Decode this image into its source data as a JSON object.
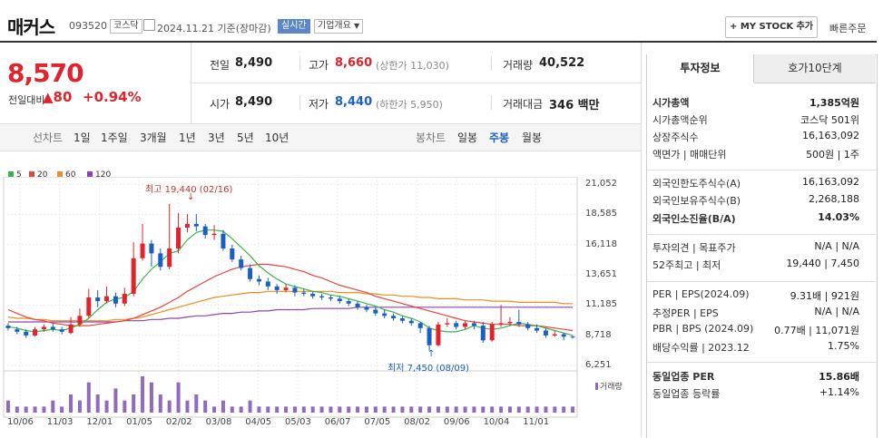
{
  "header": {
    "name": "매커스",
    "code": "093520",
    "market": "코스닥",
    "date": "2024.11.21",
    "date_note": "기준(장마감)",
    "realtime": "실시간",
    "company_info": "기업개요",
    "mystock_btn": "+ MY STOCK 추가",
    "quick_order": "빠른주문"
  },
  "price": {
    "current": "8,570",
    "change_label": "전일대비",
    "change_arrow": "▲",
    "change_value": "80",
    "change_pct": "+0.94%"
  },
  "stats": {
    "prev_label": "전일",
    "prev_value": "8,490",
    "high_label": "고가",
    "high_value": "8,660",
    "upper_label": "(상한가 11,030)",
    "volume_label": "거래량",
    "volume_value": "40,522",
    "open_label": "시가",
    "open_value": "8,490",
    "low_label": "저가",
    "low_value": "8,440",
    "lower_label": "(하한가 5,950)",
    "amount_label": "거래대금",
    "amount_value": "346 백만"
  },
  "tabs": {
    "line_label": "선차트",
    "periods": [
      "1일",
      "1주일",
      "3개월",
      "1년",
      "3년",
      "5년",
      "10년"
    ],
    "candle_label": "봉차트",
    "candles": [
      "일봉",
      "주봉",
      "월봉"
    ],
    "active_candle": "주봉"
  },
  "legend": {
    "ma": [
      {
        "label": "5",
        "color": "#3cb44b"
      },
      {
        "label": "20",
        "color": "#e6453c"
      },
      {
        "label": "60",
        "color": "#f08c1e"
      },
      {
        "label": "120",
        "color": "#8e44ad"
      }
    ],
    "volume_label": "거래량"
  },
  "annotations": {
    "high": "최고 19,440 (02/16)",
    "low": "최저 7,450 (08/09)"
  },
  "chart_data": {
    "type": "candlestick",
    "y_ticks": [
      "21,052",
      "18,585",
      "16,118",
      "13,651",
      "11,185",
      "8,718",
      "6,251"
    ],
    "x_ticks": [
      "10/06",
      "11/03",
      "12/01",
      "01/05",
      "02/02",
      "03/08",
      "04/05",
      "05/03",
      "06/07",
      "07/05",
      "08/02",
      "09/06",
      "10/04",
      "11/01"
    ],
    "ylim": [
      6251,
      21052
    ],
    "candles": [
      [
        9500,
        9300,
        9700,
        9100
      ],
      [
        9200,
        9000,
        9400,
        8800
      ],
      [
        9000,
        8700,
        9200,
        8500
      ],
      [
        8700,
        9200,
        9400,
        8600
      ],
      [
        9200,
        9400,
        9600,
        9000
      ],
      [
        9400,
        9200,
        9700,
        9000
      ],
      [
        9200,
        9000,
        9400,
        8800
      ],
      [
        8900,
        9600,
        10200,
        8800
      ],
      [
        9600,
        10300,
        10900,
        9400
      ],
      [
        10300,
        11800,
        12500,
        10100
      ],
      [
        11800,
        11500,
        12400,
        11000
      ],
      [
        11500,
        11900,
        12700,
        11300
      ],
      [
        11900,
        11300,
        12200,
        11000
      ],
      [
        11300,
        12100,
        12600,
        11100
      ],
      [
        12100,
        15000,
        16300,
        11900
      ],
      [
        15000,
        16200,
        17800,
        14800
      ],
      [
        16200,
        15400,
        16500,
        14300
      ],
      [
        15400,
        14300,
        15800,
        14000
      ],
      [
        14300,
        15800,
        19440,
        14100
      ],
      [
        15800,
        17500,
        18700,
        15400
      ],
      [
        17500,
        17800,
        18600,
        17100
      ],
      [
        17800,
        17600,
        18600,
        17200
      ],
      [
        17600,
        16900,
        17800,
        16600
      ],
      [
        16900,
        17000,
        17700,
        16500
      ],
      [
        17000,
        15800,
        17300,
        15600
      ],
      [
        15800,
        14900,
        16100,
        14700
      ],
      [
        14900,
        14200,
        15200,
        14000
      ],
      [
        14200,
        13300,
        14500,
        13100
      ],
      [
        13300,
        13100,
        13600,
        12800
      ],
      [
        13100,
        12700,
        13400,
        12400
      ],
      [
        12700,
        12400,
        12900,
        12100
      ],
      [
        12400,
        12600,
        12900,
        12200
      ],
      [
        12600,
        12200,
        12800,
        11900
      ],
      [
        12200,
        12100,
        12500,
        11900
      ],
      [
        12100,
        11900,
        12300,
        11700
      ],
      [
        11900,
        11800,
        12100,
        11600
      ],
      [
        11800,
        11700,
        12000,
        11500
      ],
      [
        11700,
        11500,
        11900,
        11300
      ],
      [
        11500,
        11300,
        11700,
        11100
      ],
      [
        11300,
        11000,
        11500,
        10800
      ],
      [
        11000,
        10800,
        11200,
        10600
      ],
      [
        10800,
        10500,
        11000,
        10300
      ],
      [
        10500,
        10300,
        10800,
        10100
      ],
      [
        10300,
        10100,
        10500,
        9900
      ],
      [
        10100,
        9900,
        10300,
        9700
      ],
      [
        9900,
        9700,
        10100,
        9500
      ],
      [
        9700,
        9300,
        9800,
        8900
      ],
      [
        9300,
        7900,
        9500,
        7450
      ],
      [
        7900,
        9600,
        9800,
        7800
      ],
      [
        9600,
        9700,
        10100,
        9400
      ],
      [
        9700,
        9400,
        9900,
        9200
      ],
      [
        9400,
        9700,
        9900,
        9200
      ],
      [
        9700,
        9500,
        9900,
        9200
      ],
      [
        9500,
        8300,
        9800,
        8100
      ],
      [
        8300,
        9600,
        9800,
        8200
      ],
      [
        9600,
        9700,
        11200,
        9400
      ],
      [
        9700,
        9800,
        10200,
        9500
      ],
      [
        9800,
        9600,
        10800,
        9400
      ],
      [
        9600,
        9300,
        9800,
        9100
      ],
      [
        9300,
        9100,
        9600,
        8900
      ],
      [
        9100,
        8700,
        9300,
        8500
      ],
      [
        8700,
        8800,
        9100,
        8600
      ],
      [
        8800,
        8600,
        8900,
        8300
      ],
      [
        8600,
        8570,
        8700,
        8440
      ]
    ],
    "ma5": [
      9400,
      9300,
      9100,
      9000,
      9100,
      9200,
      9100,
      9300,
      9600,
      10100,
      10800,
      11400,
      11700,
      11800,
      12300,
      13300,
      14100,
      14700,
      15400,
      15600,
      16500,
      17100,
      17300,
      17300,
      17200,
      16600,
      15900,
      15200,
      14400,
      13800,
      13300,
      12900,
      12700,
      12500,
      12300,
      12200,
      12000,
      11900,
      11700,
      11500,
      11300,
      11100,
      10800,
      10600,
      10300,
      10100,
      9800,
      9300,
      9100,
      9000,
      9000,
      9200,
      9500,
      9300,
      9200,
      9300,
      9500,
      9700,
      9600,
      9500,
      9300,
      9100,
      8900,
      8700
    ],
    "ma20": [
      10800,
      10500,
      10200,
      10000,
      9900,
      9700,
      9600,
      9500,
      9500,
      9500,
      9600,
      9700,
      9800,
      9900,
      10100,
      10400,
      10700,
      11000,
      11400,
      11800,
      12300,
      12700,
      13100,
      13500,
      13800,
      14100,
      14300,
      14400,
      14500,
      14500,
      14400,
      14300,
      14100,
      13900,
      13600,
      13400,
      13100,
      12800,
      12600,
      12400,
      12200,
      11900,
      11700,
      11500,
      11300,
      11100,
      10900,
      10700,
      10500,
      10300,
      10100,
      9900,
      9800,
      9700,
      9600,
      9600,
      9600,
      9500,
      9500,
      9500,
      9400,
      9300,
      9200,
      9100
    ],
    "ma60": [
      10200,
      10100,
      10100,
      10000,
      10000,
      9900,
      9900,
      9900,
      9900,
      9900,
      9900,
      9900,
      10000,
      10000,
      10100,
      10200,
      10400,
      10600,
      10800,
      11000,
      11200,
      11400,
      11600,
      11800,
      11900,
      12000,
      12100,
      12200,
      12200,
      12300,
      12300,
      12300,
      12300,
      12300,
      12300,
      12300,
      12300,
      12200,
      12200,
      12200,
      12100,
      12100,
      12000,
      12000,
      11900,
      11900,
      11800,
      11800,
      11700,
      11700,
      11700,
      11600,
      11600,
      11600,
      11500,
      11500,
      11500,
      11400,
      11400,
      11400,
      11400,
      11400,
      11300,
      11300
    ],
    "ma120": [
      9800,
      9800,
      9800,
      9800,
      9800,
      9800,
      9800,
      9800,
      9800,
      9800,
      9800,
      9800,
      9800,
      9900,
      9900,
      9900,
      10000,
      10000,
      10100,
      10100,
      10200,
      10300,
      10300,
      10400,
      10500,
      10500,
      10600,
      10600,
      10700,
      10700,
      10800,
      10800,
      10800,
      10800,
      10900,
      10900,
      10900,
      10900,
      10900,
      11000,
      11000,
      11000,
      11000,
      11000,
      11000,
      11000,
      11000,
      11000,
      11000,
      11000,
      11000,
      11000,
      11000,
      11000,
      11000,
      11000,
      11000,
      11000,
      11000,
      11000,
      11000,
      11000,
      11000,
      11000
    ],
    "volumes": [
      2,
      1,
      1,
      1,
      1,
      2,
      1,
      3,
      2,
      5,
      3,
      2,
      4,
      2,
      3,
      6,
      5,
      3,
      2,
      5,
      2,
      3,
      2,
      1,
      2,
      1,
      1,
      2,
      1,
      1,
      1,
      1,
      1,
      1,
      1,
      1,
      1,
      1,
      1,
      1,
      1,
      1,
      1,
      1,
      1,
      1,
      1,
      1,
      1,
      1,
      1,
      1,
      1,
      1,
      1,
      1,
      1,
      1,
      1,
      1,
      1,
      1,
      1,
      1
    ]
  },
  "panel": {
    "tab_active": "투자정보",
    "tab_other": "호가10단계",
    "rows": [
      {
        "label": "시가총액",
        "value": "1,385억원",
        "bold": true
      },
      {
        "label": "시가총액순위",
        "value": "코스닥 501위"
      },
      {
        "label": "상장주식수",
        "value": "16,163,092"
      },
      {
        "label": "액면가 | 매매단위",
        "value": "500원 | 1주"
      },
      {
        "label": "외국인한도주식수(A)",
        "value": "16,163,092"
      },
      {
        "label": "외국인보유주식수(B)",
        "value": "2,268,188"
      },
      {
        "label": "외국인소진율(B/A)",
        "value": "14.03%",
        "bold": true
      },
      {
        "label": "투자의견 | 목표주가",
        "value": "N/A | N/A"
      },
      {
        "label": "52주최고 | 최저",
        "value": "19,440 | 7,450"
      },
      {
        "label": "PER | EPS(2024.09)",
        "value": "9.31배 | 921원"
      },
      {
        "label": "추정PER | EPS",
        "value": "N/A | N/A"
      },
      {
        "label": "PBR | BPS (2024.09)",
        "value": "0.77배 | 11,071원"
      },
      {
        "label": "배당수익률 | 2023.12",
        "value": "1.75%"
      },
      {
        "label": "동일업종 PER",
        "value": "15.86배",
        "bold": true
      },
      {
        "label": "동일업종 등락률",
        "value": "+1.14%",
        "red": true
      }
    ]
  }
}
